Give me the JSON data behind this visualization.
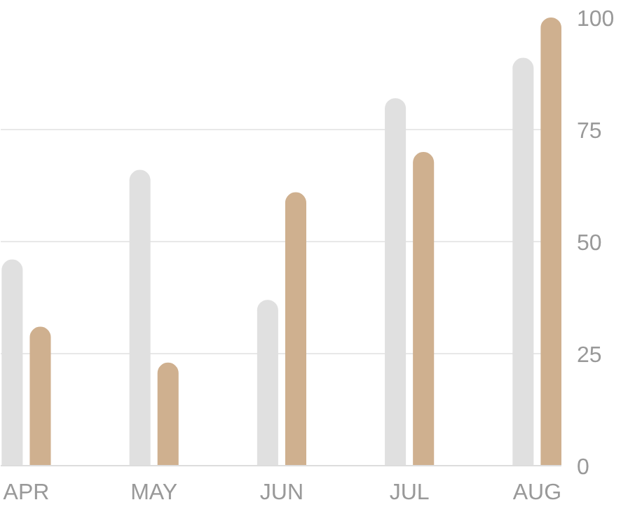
{
  "chart_data": {
    "type": "bar",
    "categories": [
      "APR",
      "MAY",
      "JUN",
      "JUL",
      "AUG"
    ],
    "series": [
      {
        "color": "#e0e0e0",
        "values": [
          46,
          66,
          37,
          82,
          91
        ]
      },
      {
        "color": "#cfb08f",
        "values": [
          31,
          23,
          61,
          70,
          100
        ]
      }
    ],
    "ylim": [
      0,
      100
    ],
    "yticks": [
      0,
      25,
      50,
      75,
      100
    ],
    "grid": "y"
  }
}
